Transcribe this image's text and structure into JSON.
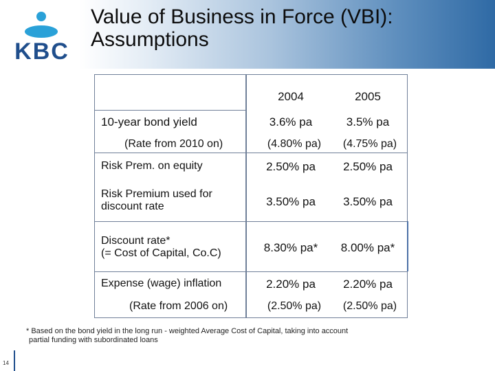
{
  "slide": {
    "title_line1": "Value of Business in Force (VBI):",
    "title_line2": "Assumptions",
    "logo_text": "KBC",
    "brand_color": "#1f4e8c",
    "page_number": "14"
  },
  "table": {
    "headers": [
      "2004",
      "2005"
    ],
    "rows": [
      {
        "label": "10-year bond yield",
        "v2004": "3.6% pa",
        "v2005": "3.5% pa"
      },
      {
        "label": "(Rate from 2010 on)",
        "v2004": "(4.80% pa)",
        "v2005": "(4.75% pa)"
      },
      {
        "label": "Risk Prem. on equity",
        "v2004": "2.50% pa",
        "v2005": "2.50% pa"
      },
      {
        "label_line1": "Risk Premium used for",
        "label_line2": "discount rate",
        "v2004": "3.50% pa",
        "v2005": "3.50% pa"
      },
      {
        "label_line1": "Discount rate*",
        "label_line2": "(= Cost of Capital, Co.C)",
        "v2004": "8.30% pa*",
        "v2005": "8.00% pa*"
      },
      {
        "label": "Expense (wage) inflation",
        "v2004": "2.20% pa",
        "v2005": "2.20% pa"
      },
      {
        "label": "(Rate from 2006 on)",
        "v2004": "(2.50% pa)",
        "v2005": "(2.50% pa)"
      }
    ]
  },
  "footnote": {
    "line1": "* Based on the bond yield in the long run - weighted Average Cost of Capital, taking into account",
    "line2": "partial funding with subordinated loans"
  }
}
